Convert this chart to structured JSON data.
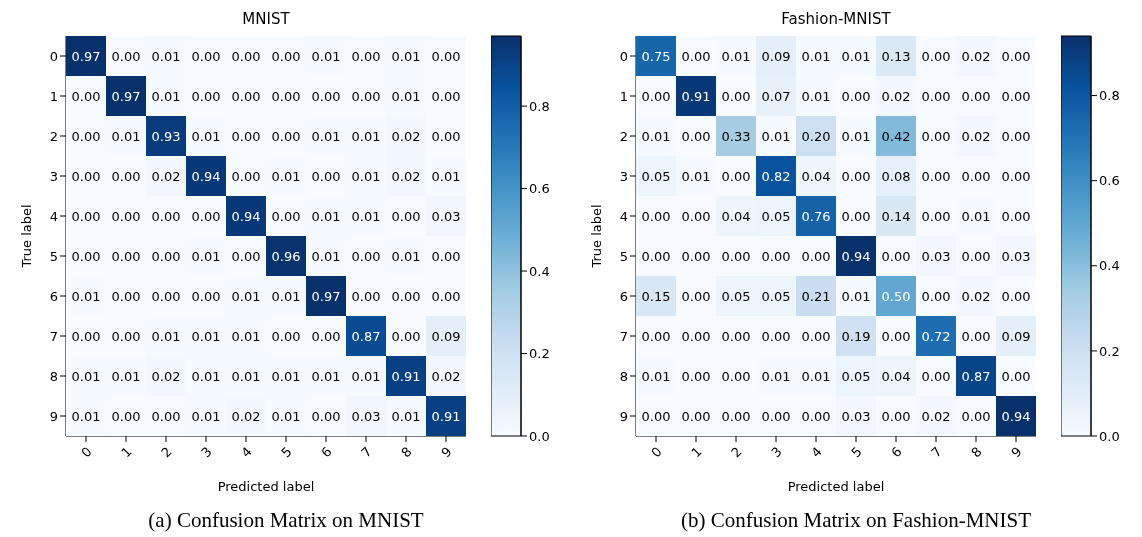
{
  "chart_data": [
    {
      "type": "heatmap",
      "title": "MNIST",
      "xlabel": "Predicted label",
      "ylabel": "True label",
      "categories": [
        "0",
        "1",
        "2",
        "3",
        "4",
        "5",
        "6",
        "7",
        "8",
        "9"
      ],
      "y_categories": [
        "0",
        "1",
        "2",
        "3",
        "4",
        "5",
        "6",
        "7",
        "8",
        "9"
      ],
      "cells": [
        [
          0.97,
          0,
          0.01,
          0,
          0,
          0,
          0.01,
          0,
          0.01,
          0
        ],
        [
          0,
          0.97,
          0.01,
          0,
          0,
          0,
          0,
          0,
          0.01,
          0
        ],
        [
          0,
          0.01,
          0.93,
          0.01,
          0,
          0,
          0.01,
          0.01,
          0.02,
          0
        ],
        [
          0,
          0,
          0.02,
          0.94,
          0,
          0.01,
          0,
          0.01,
          0.02,
          0.01
        ],
        [
          0,
          0,
          0,
          0,
          0.94,
          0,
          0.01,
          0.01,
          0,
          0.03
        ],
        [
          0,
          0,
          0,
          0.01,
          0,
          0.96,
          0.01,
          0,
          0.01,
          0
        ],
        [
          0.01,
          0,
          0,
          0,
          0.01,
          0.01,
          0.97,
          0,
          0,
          0
        ],
        [
          0,
          0,
          0.01,
          0.01,
          0.01,
          0,
          0,
          0.87,
          0,
          0.09
        ],
        [
          0.01,
          0.01,
          0.02,
          0.01,
          0.01,
          0.01,
          0.01,
          0.01,
          0.91,
          0.02
        ],
        [
          0.01,
          0,
          0,
          0.01,
          0.02,
          0.01,
          0,
          0.03,
          0.01,
          0.91
        ]
      ],
      "cell_labels": [
        [
          "0.97",
          "0.00",
          "0.01",
          "0.00",
          "0.00",
          "0.00",
          "0.01",
          "0.00",
          "0.01",
          "0.00"
        ],
        [
          "0.00",
          "0.97",
          "0.01",
          "0.00",
          "0.00",
          "0.00",
          "0.00",
          "0.00",
          "0.01",
          "0.00"
        ],
        [
          "0.00",
          "0.01",
          "0.93",
          "0.01",
          "0.00",
          "0.00",
          "0.01",
          "0.01",
          "0.02",
          "0.00"
        ],
        [
          "0.00",
          "0.00",
          "0.02",
          "0.94",
          "0.00",
          "0.01",
          "0.00",
          "0.01",
          "0.02",
          "0.01"
        ],
        [
          "0.00",
          "0.00",
          "0.00",
          "0.00",
          "0.94",
          "0.00",
          "0.01",
          "0.01",
          "0.00",
          "0.03"
        ],
        [
          "0.00",
          "0.00",
          "0.00",
          "0.01",
          "0.00",
          "0.96",
          "0.01",
          "0.00",
          "0.01",
          "0.00"
        ],
        [
          "0.01",
          "0.00",
          "0.00",
          "0.00",
          "0.01",
          "0.01",
          "0.97",
          "0.00",
          "0.00",
          "0.00"
        ],
        [
          "0.00",
          "0.00",
          "0.01",
          "0.01",
          "0.01",
          "0.00",
          "0.00",
          "0.87",
          "0.00",
          "0.09"
        ],
        [
          "0.01",
          "0.01",
          "0.02",
          "0.01",
          "0.01",
          "0.01",
          "0.01",
          "0.01",
          "0.91",
          "0.02"
        ],
        [
          "0.01",
          "0.00",
          "0.00",
          "0.01",
          "0.02",
          "0.01",
          "0.00",
          "0.03",
          "0.01",
          "0.91"
        ]
      ],
      "clim": [
        0,
        0.97
      ],
      "cticks": [
        {
          "value": 0,
          "label": "0.0"
        },
        {
          "value": 0.2,
          "label": "0.2"
        },
        {
          "value": 0.4,
          "label": "0.4"
        },
        {
          "value": 0.6,
          "label": "0.6"
        },
        {
          "value": 0.8,
          "label": "0.8"
        }
      ],
      "annotations": [
        "(a) Confusion Matrix on MNIST"
      ]
    },
    {
      "type": "heatmap",
      "title": "Fashion-MNIST",
      "xlabel": "Predicted label",
      "ylabel": "True label",
      "categories": [
        "0",
        "1",
        "2",
        "3",
        "4",
        "5",
        "6",
        "7",
        "8",
        "9"
      ],
      "y_categories": [
        "0",
        "1",
        "2",
        "3",
        "4",
        "5",
        "6",
        "7",
        "8",
        "9"
      ],
      "cells": [
        [
          0.75,
          0,
          0.01,
          0.09,
          0.01,
          0.01,
          0.13,
          0,
          0.02,
          0
        ],
        [
          0,
          0.91,
          0,
          0.07,
          0.01,
          0,
          0.02,
          0,
          0,
          0
        ],
        [
          0.01,
          0,
          0.33,
          0.01,
          0.2,
          0.01,
          0.42,
          0,
          0.02,
          0
        ],
        [
          0.05,
          0.01,
          0,
          0.82,
          0.04,
          0,
          0.08,
          0,
          0,
          0
        ],
        [
          0,
          0,
          0.04,
          0.05,
          0.76,
          0,
          0.14,
          0,
          0.01,
          0
        ],
        [
          0,
          0,
          0,
          0,
          0,
          0.94,
          0,
          0.03,
          0,
          0.03
        ],
        [
          0.15,
          0,
          0.05,
          0.05,
          0.21,
          0.01,
          0.5,
          0,
          0.02,
          0
        ],
        [
          0,
          0,
          0,
          0,
          0,
          0.19,
          0,
          0.72,
          0,
          0.09
        ],
        [
          0.01,
          0,
          0,
          0.01,
          0.01,
          0.05,
          0.04,
          0,
          0.87,
          0
        ],
        [
          0,
          0,
          0,
          0,
          0,
          0.03,
          0,
          0.02,
          0,
          0.94
        ]
      ],
      "cell_labels": [
        [
          "0.75",
          "0.00",
          "0.01",
          "0.09",
          "0.01",
          "0.01",
          "0.13",
          "0.00",
          "0.02",
          "0.00"
        ],
        [
          "0.00",
          "0.91",
          "0.00",
          "0.07",
          "0.01",
          "0.00",
          "0.02",
          "0.00",
          "0.00",
          "0.00"
        ],
        [
          "0.01",
          "0.00",
          "0.33",
          "0.01",
          "0.20",
          "0.01",
          "0.42",
          "0.00",
          "0.02",
          "0.00"
        ],
        [
          "0.05",
          "0.01",
          "0.00",
          "0.82",
          "0.04",
          "0.00",
          "0.08",
          "0.00",
          "0.00",
          "0.00"
        ],
        [
          "0.00",
          "0.00",
          "0.04",
          "0.05",
          "0.76",
          "0.00",
          "0.14",
          "0.00",
          "0.01",
          "0.00"
        ],
        [
          "0.00",
          "0.00",
          "0.00",
          "0.00",
          "0.00",
          "0.94",
          "0.00",
          "0.03",
          "0.00",
          "0.03"
        ],
        [
          "0.15",
          "0.00",
          "0.05",
          "0.05",
          "0.21",
          "0.01",
          "0.50",
          "0.00",
          "0.02",
          "0.00"
        ],
        [
          "0.00",
          "0.00",
          "0.00",
          "0.00",
          "0.00",
          "0.19",
          "0.00",
          "0.72",
          "0.00",
          "0.09"
        ],
        [
          "0.01",
          "0.00",
          "0.00",
          "0.01",
          "0.01",
          "0.05",
          "0.04",
          "0.00",
          "0.87",
          "0.00"
        ],
        [
          "0.00",
          "0.00",
          "0.00",
          "0.00",
          "0.00",
          "0.03",
          "0.00",
          "0.02",
          "0.00",
          "0.94"
        ]
      ],
      "clim": [
        0,
        0.94
      ],
      "cticks": [
        {
          "value": 0,
          "label": "0.0"
        },
        {
          "value": 0.2,
          "label": "0.2"
        },
        {
          "value": 0.4,
          "label": "0.4"
        },
        {
          "value": 0.6,
          "label": "0.6"
        },
        {
          "value": 0.8,
          "label": "0.8"
        }
      ],
      "annotations": [
        "(b) Confusion Matrix on Fashion-MNIST"
      ]
    }
  ]
}
